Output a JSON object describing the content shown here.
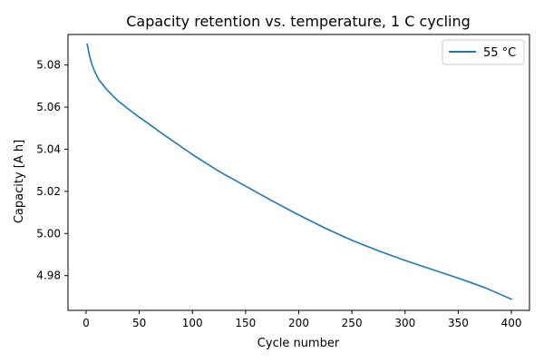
{
  "chart_data": {
    "type": "line",
    "title": "Capacity retention vs. temperature, 1 C cycling",
    "xlabel": "Cycle number",
    "ylabel": "Capacity [A h]",
    "xlim": [
      -17,
      417
    ],
    "ylim": [
      4.9635,
      5.0945
    ],
    "x_ticks": [
      0,
      50,
      100,
      150,
      200,
      250,
      300,
      350,
      400
    ],
    "x_tick_labels": [
      "0",
      "50",
      "100",
      "150",
      "200",
      "250",
      "300",
      "350",
      "400"
    ],
    "y_ticks": [
      4.98,
      5.0,
      5.02,
      5.04,
      5.06,
      5.08
    ],
    "y_tick_labels": [
      "4.98",
      "5.00",
      "5.02",
      "5.04",
      "5.06",
      "5.08"
    ],
    "grid": false,
    "legend_position": "upper right",
    "series": [
      {
        "name": "55 °C",
        "color": "#1f77b4",
        "x": [
          1,
          3,
          5,
          8,
          12,
          16,
          20,
          25,
          30,
          40,
          50,
          60,
          70,
          80,
          90,
          100,
          125,
          150,
          175,
          200,
          225,
          250,
          275,
          300,
          325,
          350,
          375,
          400
        ],
        "y": [
          5.09,
          5.085,
          5.081,
          5.077,
          5.073,
          5.0705,
          5.068,
          5.0655,
          5.063,
          5.059,
          5.0552,
          5.0517,
          5.048,
          5.0445,
          5.041,
          5.0375,
          5.0295,
          5.0225,
          5.0155,
          5.0088,
          5.0025,
          4.9968,
          4.9918,
          4.9872,
          4.983,
          4.9788,
          4.9743,
          4.9688
        ]
      }
    ]
  }
}
